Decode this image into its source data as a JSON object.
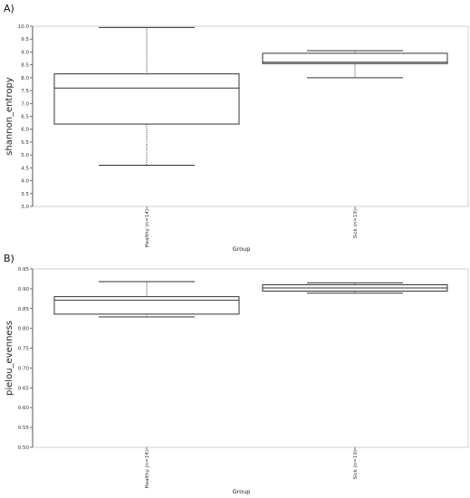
{
  "chart_data": [
    {
      "panel_label": "A)",
      "type": "box",
      "xlabel": "Group",
      "ylabel": "shannon_entropy",
      "ylim": [
        3.0,
        10.0
      ],
      "yticks": [
        "3.0",
        "3.5",
        "4.0",
        "4.5",
        "5.0",
        "5.5",
        "6.0",
        "6.5",
        "7.0",
        "7.5",
        "8.0",
        "8.5",
        "9.0",
        "9.5",
        "10.0"
      ],
      "categories": [
        "Healthy (n=14)",
        "Sick (n=19)"
      ],
      "boxes": [
        {
          "min": 4.6,
          "q1": 6.2,
          "median": 7.6,
          "q3": 8.15,
          "max": 9.95
        },
        {
          "min": 8.0,
          "q1": 8.55,
          "median": 8.6,
          "q3": 8.95,
          "max": 9.05
        }
      ]
    },
    {
      "panel_label": "B)",
      "type": "box",
      "xlabel": "Group",
      "ylabel": "pielou_evenness",
      "ylim": [
        0.5,
        0.95
      ],
      "yticks": [
        "0.50",
        "0.55",
        "0.60",
        "0.65",
        "0.70",
        "0.75",
        "0.80",
        "0.85",
        "0.90",
        "0.95"
      ],
      "categories": [
        "Healthy (n=14)",
        "Sick (n=19)"
      ],
      "boxes": [
        {
          "min": 0.829,
          "q1": 0.836,
          "median": 0.871,
          "q3": 0.88,
          "max": 0.918
        },
        {
          "min": 0.889,
          "q1": 0.894,
          "median": 0.902,
          "q3": 0.91,
          "max": 0.915
        }
      ]
    }
  ]
}
